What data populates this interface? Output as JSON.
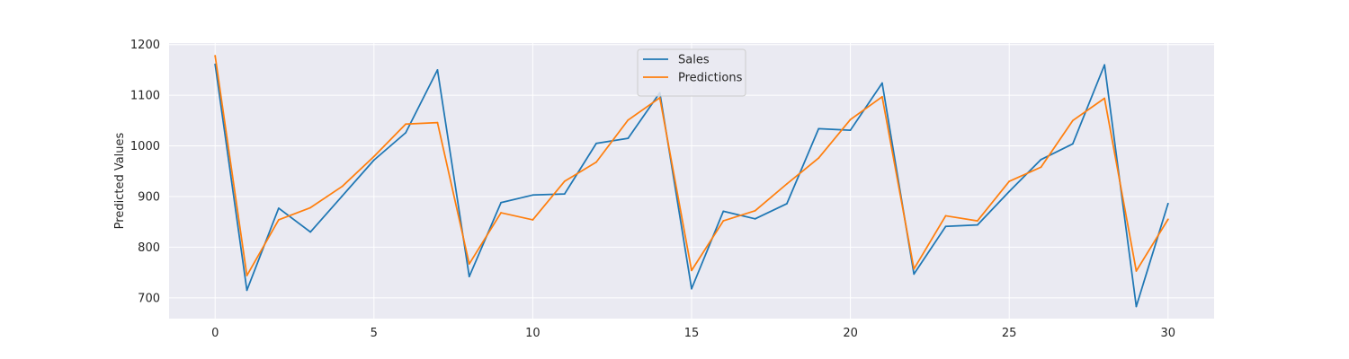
{
  "chart_data": {
    "type": "line",
    "title": "",
    "xlabel": "",
    "ylabel": "Predicted Values",
    "xlim": [
      -1.45,
      31.45
    ],
    "ylim": [
      659,
      1203
    ],
    "xticks": [
      0,
      5,
      10,
      15,
      20,
      25,
      30
    ],
    "yticks": [
      700,
      800,
      900,
      1000,
      1100,
      1200
    ],
    "grid": true,
    "legend_position": "top-center",
    "x": [
      0,
      1,
      2,
      3,
      4,
      5,
      6,
      7,
      8,
      9,
      10,
      11,
      12,
      13,
      14,
      15,
      16,
      17,
      18,
      19,
      20,
      21,
      22,
      23,
      24,
      25,
      26,
      27,
      28,
      29,
      30
    ],
    "series": [
      {
        "name": "Sales",
        "color": "#1f77b4",
        "values": [
          1161,
          715,
          877,
          830,
          901,
          972,
          1026,
          1150,
          742,
          888,
          903,
          905,
          1005,
          1015,
          1105,
          718,
          871,
          856,
          886,
          1034,
          1031,
          1124,
          747,
          841,
          844,
          910,
          973,
          1004,
          1160,
          683,
          886
        ]
      },
      {
        "name": "Predictions",
        "color": "#ff7f0e",
        "values": [
          1178,
          744,
          854,
          878,
          920,
          979,
          1043,
          1046,
          767,
          868,
          854,
          930,
          968,
          1051,
          1095,
          754,
          852,
          872,
          925,
          976,
          1052,
          1097,
          757,
          862,
          852,
          930,
          958,
          1050,
          1094,
          753,
          855
        ]
      }
    ]
  },
  "style": {
    "plot_background": "#eaeaf2",
    "grid_color": "#ffffff"
  }
}
